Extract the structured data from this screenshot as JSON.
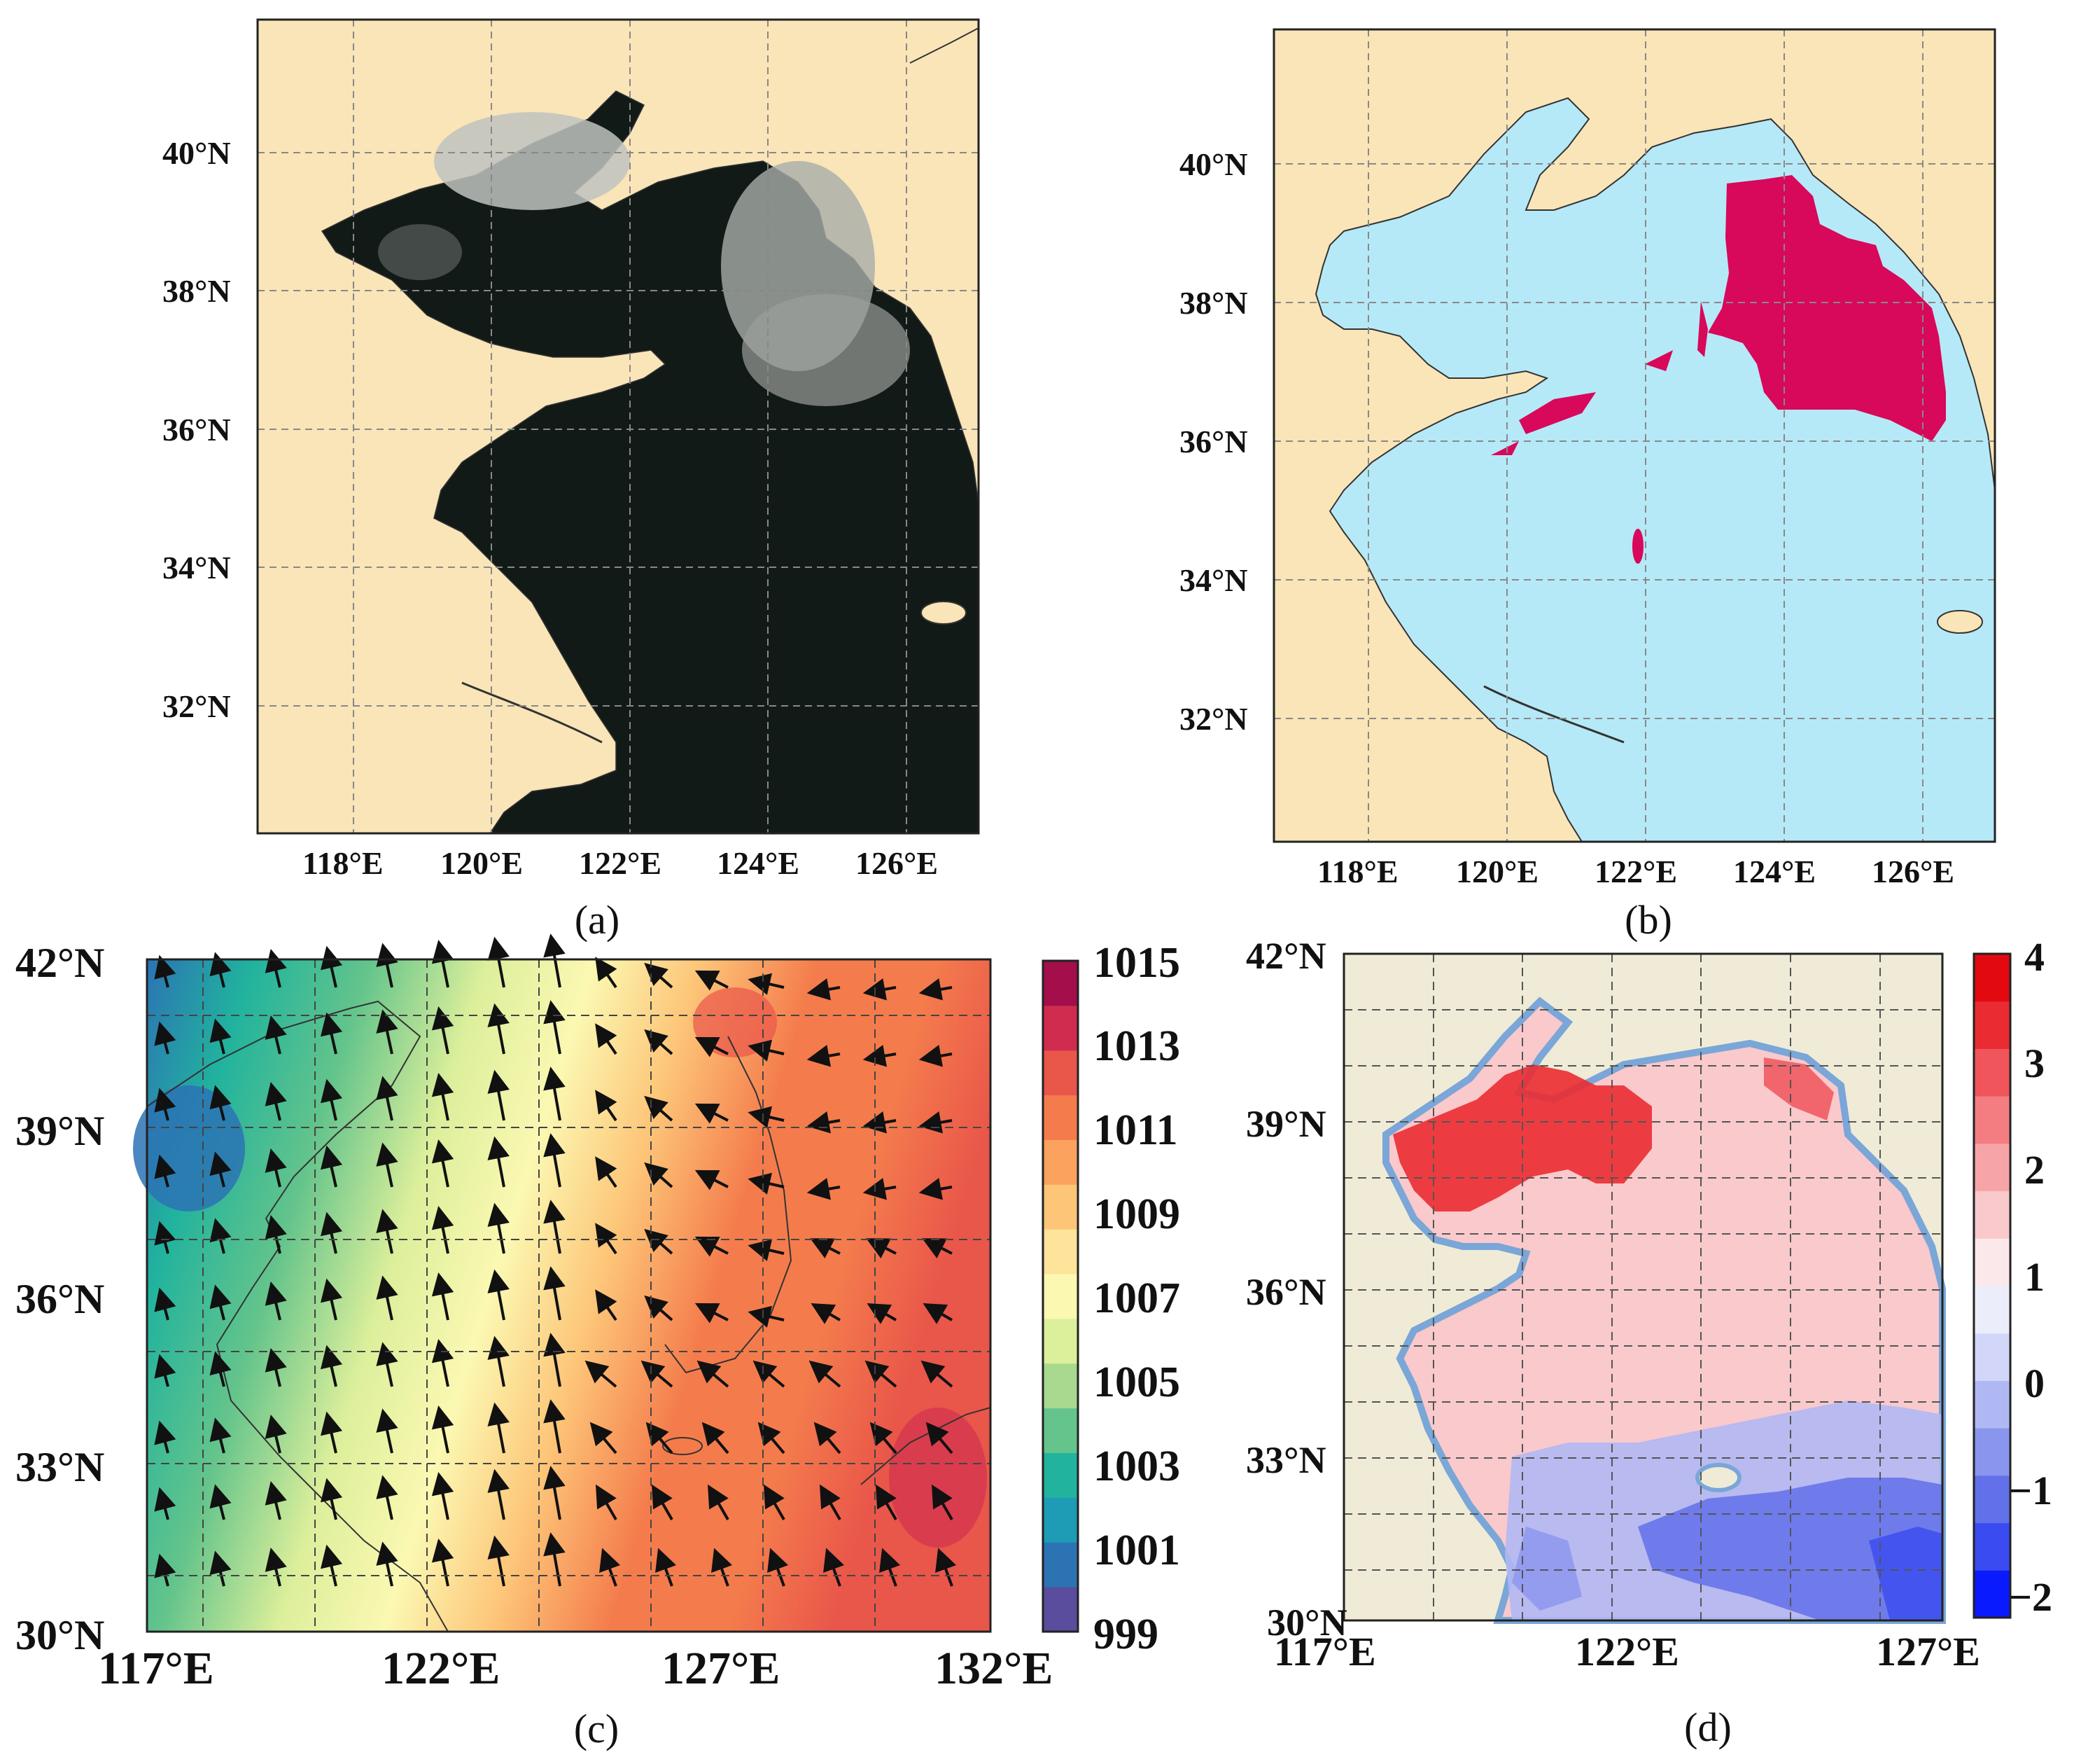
{
  "panels": [
    {
      "id": "a",
      "caption": "(a)",
      "lat_labels": [
        "40°N",
        "38°N",
        "36°N",
        "34°N",
        "32°N"
      ],
      "lon_labels": [
        "118°E",
        "120°E",
        "122°E",
        "124°E",
        "126°E"
      ]
    },
    {
      "id": "b",
      "caption": "(b)",
      "lat_labels": [
        "40°N",
        "38°N",
        "36°N",
        "34°N",
        "32°N"
      ],
      "lon_labels": [
        "118°E",
        "120°E",
        "122°E",
        "124°E",
        "126°E"
      ]
    },
    {
      "id": "c",
      "caption": "(c)",
      "lat_labels": [
        "42°N",
        "39°N",
        "36°N",
        "33°N",
        "30°N"
      ],
      "lon_labels": [
        "117°E",
        "122°E",
        "127°E",
        "132°E"
      ],
      "colorbar_labels": [
        "1015",
        "1013",
        "1011",
        "1009",
        "1007",
        "1005",
        "1003",
        "1001",
        "999"
      ]
    },
    {
      "id": "d",
      "caption": "(d)",
      "lat_labels": [
        "42°N",
        "39°N",
        "36°N",
        "33°N",
        "30°N"
      ],
      "lon_labels": [
        "117°E",
        "122°E",
        "127°E"
      ],
      "colorbar_labels": [
        "4",
        "3",
        "2",
        "1",
        "0",
        "−1",
        "−2"
      ]
    }
  ],
  "colors": {
    "land": "#fae5b8",
    "sea_b": "#b6e9f7",
    "fog_b": "#d8085a",
    "land_d": "#efebd6",
    "dark_sea": "#121a17"
  },
  "pressure_colors": [
    "#5a4d9e",
    "#2c73b4",
    "#1e9bb5",
    "#21b39e",
    "#64c48b",
    "#a9d98f",
    "#dcef9b",
    "#fbf8b2",
    "#fde49a",
    "#fdc578",
    "#faa25e",
    "#f47c4c",
    "#e9564a",
    "#cf2c4f",
    "#a40e4b"
  ],
  "diff_colors": [
    "#0a1aff",
    "#3a4cf0",
    "#6270ea",
    "#8a95ee",
    "#b0b8f4",
    "#d2d6f8",
    "#ecedfb",
    "#fbe8ea",
    "#f9c9cc",
    "#f7a4a8",
    "#f47d82",
    "#f0555b",
    "#ea2c32",
    "#e20a10"
  ]
}
